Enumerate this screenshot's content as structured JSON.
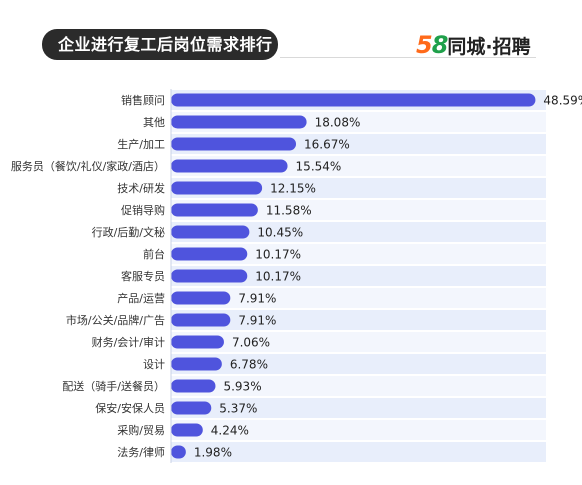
{
  "header": {
    "title": "企业进行复工后岗位需求排行",
    "brand_number_5": "5",
    "brand_number_8": "8",
    "brand_text": "同城·招聘"
  },
  "colors": {
    "bar": "#4f54dd",
    "row_band": "#e8eefb",
    "title_bg": "#2b2b2b"
  },
  "chart_data": {
    "type": "bar",
    "orientation": "horizontal",
    "categories": [
      "销售顾问",
      "其他",
      "生产/加工",
      "服务员（餐饮/礼仪/家政/酒店）",
      "技术/研发",
      "促销导购",
      "行政/后勤/文秘",
      "前台",
      "客服专员",
      "产品/运营",
      "市场/公关/品牌/广告",
      "财务/会计/审计",
      "设计",
      "配送（骑手/送餐员）",
      "保安/安保人员",
      "采购/贸易",
      "法务/律师"
    ],
    "values": [
      48.59,
      18.08,
      16.67,
      15.54,
      12.15,
      11.58,
      10.45,
      10.17,
      10.17,
      7.91,
      7.91,
      7.06,
      6.78,
      5.93,
      5.37,
      4.24,
      1.98
    ],
    "value_labels": [
      "48.59%",
      "18.08%",
      "16.67%",
      "15.54%",
      "12.15%",
      "11.58%",
      "10.45%",
      "10.17%",
      "10.17%",
      "7.91%",
      "7.91%",
      "7.06%",
      "6.78%",
      "5.93%",
      "5.37%",
      "4.24%",
      "1.98%"
    ],
    "xlim": [
      0,
      50
    ],
    "title": "",
    "xlabel": "",
    "ylabel": "",
    "grid": false,
    "legend": "none"
  }
}
